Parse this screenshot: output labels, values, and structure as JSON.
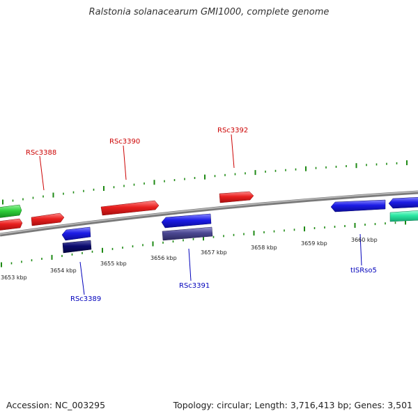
{
  "title": "Ralstonia solanacearum GMI1000, complete genome",
  "accession": "Accession: NC_003295",
  "summary": "Topology: circular; Length: 3,716,413 bp; Genes: 3,501",
  "colors": {
    "red": "#e8201f",
    "green": "#2fcf3a",
    "blue": "#1c1ce6",
    "navy": "#0a0a6e",
    "slate": "#4b4791",
    "aqua": "#2ce8a4",
    "tick_green": "#1e8a14",
    "backbone": "#8a8a8a",
    "label_red": "#cc0000",
    "label_blue": "#0000bb"
  },
  "gene_labels": [
    {
      "text": "RSc3388",
      "strand": "forward"
    },
    {
      "text": "RSc3390",
      "strand": "forward"
    },
    {
      "text": "RSc3392",
      "strand": "forward"
    },
    {
      "text": "RSc3389",
      "strand": "reverse"
    },
    {
      "text": "RSc3391",
      "strand": "reverse"
    },
    {
      "text": "tISRso5",
      "strand": "reverse"
    }
  ],
  "scale_labels": [
    "3653 kbp",
    "3654 kbp",
    "3655 kbp",
    "3656 kbp",
    "3657 kbp",
    "3658 kbp",
    "3659 kbp",
    "3660 kbp"
  ]
}
